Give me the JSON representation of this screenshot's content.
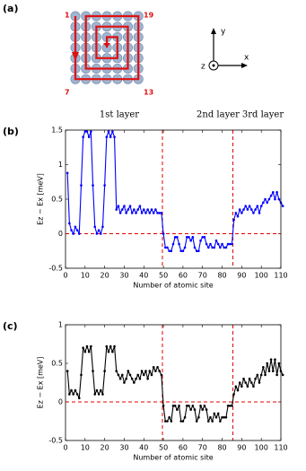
{
  "panel_a": {
    "label": "(a)",
    "site_labels": [
      "1",
      "19",
      "7",
      "13"
    ],
    "axis_labels": [
      "y",
      "x",
      "z"
    ]
  },
  "chart_data": [
    {
      "type": "line",
      "panel_label": "(b)",
      "annotations": [
        "1st layer",
        "2nd layer",
        "3rd layer"
      ],
      "x_label": "Number of atomic site",
      "y_label": "Ez − Ex [meV]",
      "color": "#0000ff",
      "xlim": [
        0,
        110
      ],
      "xticks": [
        0,
        10,
        20,
        30,
        40,
        50,
        60,
        70,
        80,
        90,
        100,
        110
      ],
      "ylim": [
        -0.5,
        1.5
      ],
      "yticks": [
        -0.5,
        0,
        0.5,
        1,
        1.5
      ],
      "vlines": [
        49.5,
        85.5
      ],
      "hline": 0,
      "ref_color": "#e00000",
      "x": [
        1,
        2,
        3,
        4,
        5,
        6,
        7,
        8,
        9,
        10,
        11,
        12,
        13,
        14,
        15,
        16,
        17,
        18,
        19,
        20,
        21,
        22,
        23,
        24,
        25,
        26,
        27,
        28,
        29,
        30,
        31,
        32,
        33,
        34,
        35,
        36,
        37,
        38,
        39,
        40,
        41,
        42,
        43,
        44,
        45,
        46,
        47,
        48,
        49,
        50,
        51,
        52,
        53,
        54,
        55,
        56,
        57,
        58,
        59,
        60,
        61,
        62,
        63,
        64,
        65,
        66,
        67,
        68,
        69,
        70,
        71,
        72,
        73,
        74,
        75,
        76,
        77,
        78,
        79,
        80,
        81,
        82,
        83,
        84,
        85,
        86,
        87,
        88,
        89,
        90,
        91,
        92,
        93,
        94,
        95,
        96,
        97,
        98,
        99,
        100,
        101,
        102,
        103,
        104,
        105,
        106,
        107,
        108,
        109,
        110,
        111
      ],
      "values": [
        0.88,
        0.15,
        0.05,
        0,
        0.1,
        0.05,
        0,
        0.7,
        1.4,
        1.48,
        1.48,
        1.4,
        1.48,
        0.7,
        0.1,
        0,
        0.05,
        0,
        0.1,
        0.7,
        1.4,
        1.48,
        1.4,
        1.48,
        1.4,
        0.35,
        0.4,
        0.3,
        0.35,
        0.4,
        0.3,
        0.35,
        0.4,
        0.3,
        0.35,
        0.3,
        0.35,
        0.4,
        0.3,
        0.35,
        0.3,
        0.35,
        0.3,
        0.35,
        0.3,
        0.35,
        0.3,
        0.3,
        0.3,
        0,
        -0.2,
        -0.2,
        -0.25,
        -0.25,
        -0.15,
        -0.05,
        -0.05,
        -0.15,
        -0.25,
        -0.25,
        -0.2,
        -0.05,
        -0.05,
        -0.1,
        -0.05,
        -0.2,
        -0.25,
        -0.25,
        -0.1,
        -0.05,
        -0.05,
        -0.15,
        -0.2,
        -0.15,
        -0.2,
        -0.2,
        -0.1,
        -0.15,
        -0.2,
        -0.15,
        -0.2,
        -0.2,
        -0.15,
        -0.15,
        -0.15,
        0.2,
        0.3,
        0.25,
        0.35,
        0.3,
        0.35,
        0.4,
        0.35,
        0.4,
        0.35,
        0.3,
        0.35,
        0.4,
        0.3,
        0.4,
        0.45,
        0.5,
        0.45,
        0.5,
        0.55,
        0.6,
        0.5,
        0.6,
        0.5,
        0.45,
        0.4
      ]
    },
    {
      "type": "line",
      "panel_label": "(c)",
      "x_label": "Number of atomic site",
      "y_label": "Ez − Ex [meV]",
      "color": "#000000",
      "xlim": [
        0,
        110
      ],
      "xticks": [
        0,
        10,
        20,
        30,
        40,
        50,
        60,
        70,
        80,
        90,
        100,
        110
      ],
      "ylim": [
        -0.5,
        1
      ],
      "yticks": [
        -0.5,
        0,
        0.5,
        1
      ],
      "vlines": [
        49.5,
        85.5
      ],
      "hline": 0,
      "ref_color": "#e00000",
      "x": [
        1,
        2,
        3,
        4,
        5,
        6,
        7,
        8,
        9,
        10,
        11,
        12,
        13,
        14,
        15,
        16,
        17,
        18,
        19,
        20,
        21,
        22,
        23,
        24,
        25,
        26,
        27,
        28,
        29,
        30,
        31,
        32,
        33,
        34,
        35,
        36,
        37,
        38,
        39,
        40,
        41,
        42,
        43,
        44,
        45,
        46,
        47,
        48,
        49,
        50,
        51,
        52,
        53,
        54,
        55,
        56,
        57,
        58,
        59,
        60,
        61,
        62,
        63,
        64,
        65,
        66,
        67,
        68,
        69,
        70,
        71,
        72,
        73,
        74,
        75,
        76,
        77,
        78,
        79,
        80,
        81,
        82,
        83,
        84,
        85,
        86,
        87,
        88,
        89,
        90,
        91,
        92,
        93,
        94,
        95,
        96,
        97,
        98,
        99,
        100,
        101,
        102,
        103,
        104,
        105,
        106,
        107,
        108,
        109,
        110,
        111
      ],
      "values": [
        0.4,
        0.1,
        0.15,
        0.1,
        0.15,
        0.1,
        0.05,
        0.35,
        0.7,
        0.65,
        0.72,
        0.65,
        0.72,
        0.4,
        0.1,
        0.15,
        0.1,
        0.15,
        0.1,
        0.4,
        0.72,
        0.65,
        0.72,
        0.65,
        0.72,
        0.4,
        0.35,
        0.3,
        0.35,
        0.25,
        0.3,
        0.4,
        0.35,
        0.3,
        0.25,
        0.3,
        0.35,
        0.3,
        0.4,
        0.35,
        0.4,
        0.3,
        0.4,
        0.35,
        0.45,
        0.4,
        0.45,
        0.4,
        0.35,
        -0.05,
        -0.25,
        -0.25,
        -0.2,
        -0.25,
        -0.05,
        -0.05,
        -0.1,
        -0.05,
        -0.25,
        -0.25,
        -0.2,
        -0.05,
        -0.05,
        -0.1,
        -0.05,
        -0.1,
        -0.25,
        -0.2,
        -0.05,
        -0.1,
        -0.05,
        -0.1,
        -0.25,
        -0.2,
        -0.25,
        -0.15,
        -0.2,
        -0.15,
        -0.25,
        -0.2,
        -0.2,
        -0.2,
        -0.05,
        -0.05,
        -0.05,
        0.1,
        0.2,
        0.15,
        0.25,
        0.2,
        0.3,
        0.25,
        0.2,
        0.3,
        0.25,
        0.2,
        0.3,
        0.35,
        0.25,
        0.35,
        0.45,
        0.35,
        0.5,
        0.4,
        0.55,
        0.4,
        0.55,
        0.35,
        0.5,
        0.4,
        0.35
      ]
    }
  ]
}
